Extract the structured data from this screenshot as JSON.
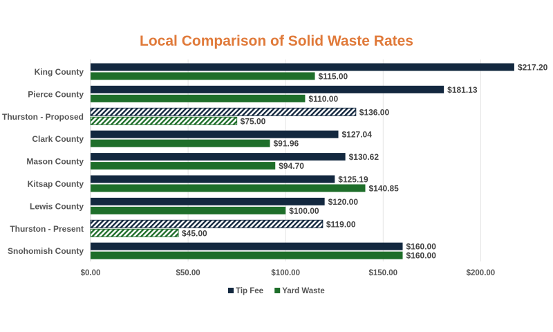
{
  "chart_data": {
    "type": "bar",
    "orientation": "horizontal",
    "title": "Local Comparison of Solid Waste Rates",
    "categories": [
      "King County",
      "Pierce County",
      "Thurston - Proposed",
      "Clark County",
      "Mason County",
      "Kitsap County",
      "Lewis County",
      "Thurston - Present",
      "Snohomish County"
    ],
    "series": [
      {
        "name": "Tip Fee",
        "color": "#13283f",
        "values": [
          217.2,
          181.13,
          136.0,
          127.04,
          130.62,
          125.19,
          120.0,
          119.0,
          160.0
        ]
      },
      {
        "name": "Yard Waste",
        "color": "#1e6e2a",
        "values": [
          115.0,
          110.0,
          75.0,
          91.96,
          94.7,
          140.85,
          100.0,
          45.0,
          160.0
        ]
      }
    ],
    "hatched_categories": [
      "Thurston - Proposed",
      "Thurston - Present"
    ],
    "data_labels": {
      "Tip Fee": [
        "$217.20",
        "$181.13",
        "$136.00",
        "$127.04",
        "$130.62",
        "$125.19",
        "$120.00",
        "$119.00",
        "$160.00"
      ],
      "Yard Waste": [
        "$115.00",
        "$110.00",
        "$75.00",
        "$91.96",
        "$94.70",
        "$140.85",
        "$100.00",
        "$45.00",
        "$160.00"
      ]
    },
    "xticks": [
      0,
      50,
      100,
      150,
      200
    ],
    "xtick_labels": [
      "$0.00",
      "$50.00",
      "$100.00",
      "$150.00",
      "$200.00"
    ],
    "xlim": [
      0,
      225
    ],
    "grid": true,
    "legend_position": "bottom",
    "xlabel": "",
    "ylabel": ""
  }
}
